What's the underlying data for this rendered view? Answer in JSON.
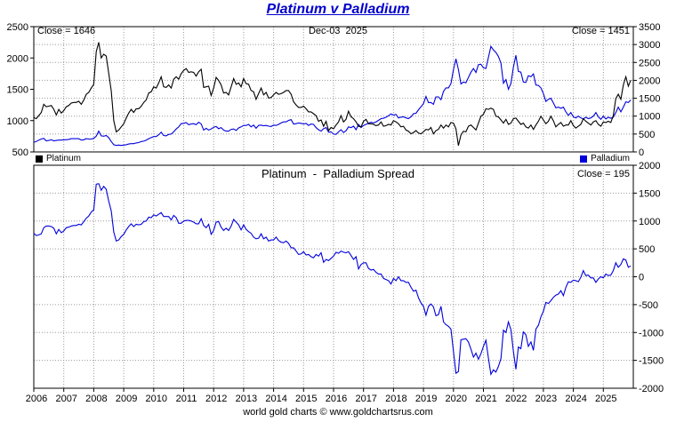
{
  "title": "Platinum v Palladium",
  "top_panel": {
    "close_left": "Close = 1646",
    "date": "Dec-03  2025",
    "close_right": "Close = 1451",
    "legend": [
      {
        "label": "Platinum",
        "color": "#000000"
      },
      {
        "label": "Palladium",
        "color": "#0000dd"
      }
    ]
  },
  "bottom_panel": {
    "title": "Platinum  -  Palladium Spread",
    "close": "Close = 195"
  },
  "footer": "world gold charts © www.goldchartsrus.com",
  "colors": {
    "title": "#0000cc",
    "platinum": "#000000",
    "palladium": "#0000dd",
    "spread": "#0000dd",
    "grid": "#999999",
    "axis": "#000000",
    "background": "#ffffff"
  },
  "chart_data": [
    {
      "type": "line",
      "title": "Platinum v Palladium",
      "x_unit": "year",
      "x_start": 2006,
      "x_step": 0.0833333,
      "xlim": [
        2006,
        2026
      ],
      "x_ticks": [
        2006,
        2007,
        2008,
        2009,
        2010,
        2011,
        2012,
        2013,
        2014,
        2015,
        2016,
        2017,
        2018,
        2019,
        2020,
        2021,
        2022,
        2023,
        2024,
        2025
      ],
      "grid": true,
      "legend_position": "between-panels",
      "axes": {
        "left": {
          "series": "Platinum",
          "range": [
            500,
            2500
          ],
          "ticks": [
            500,
            1000,
            1500,
            2000,
            2500
          ]
        },
        "right": {
          "series": "Palladium",
          "range": [
            0,
            3500
          ],
          "ticks": [
            0,
            500,
            1000,
            1500,
            2000,
            2500,
            3000,
            3500
          ]
        }
      },
      "series": [
        {
          "name": "Platinum",
          "axis": "left",
          "color": "#000000",
          "close": 1646,
          "values": [
            1050,
            1030,
            1080,
            1130,
            1260,
            1220,
            1230,
            1240,
            1180,
            1090,
            1180,
            1120,
            1160,
            1220,
            1240,
            1280,
            1290,
            1290,
            1310,
            1260,
            1330,
            1420,
            1450,
            1520,
            1580,
            2100,
            2250,
            2000,
            2060,
            2030,
            1760,
            1470,
            1000,
            820,
            850,
            900,
            950,
            1040,
            1120,
            1180,
            1130,
            1190,
            1190,
            1230,
            1290,
            1330,
            1440,
            1460,
            1540,
            1520,
            1600,
            1700,
            1540,
            1530,
            1570,
            1520,
            1660,
            1700,
            1660,
            1750,
            1800,
            1830,
            1770,
            1780,
            1770,
            1710,
            1780,
            1820,
            1530,
            1540,
            1550,
            1400,
            1520,
            1690,
            1640,
            1570,
            1440,
            1450,
            1410,
            1540,
            1670,
            1580,
            1600,
            1540,
            1670,
            1590,
            1580,
            1480,
            1460,
            1340,
            1430,
            1520,
            1410,
            1450,
            1360,
            1370,
            1410,
            1450,
            1420,
            1430,
            1450,
            1480,
            1480,
            1420,
            1300,
            1250,
            1210,
            1210,
            1230,
            1190,
            1140,
            1140,
            1110,
            1080,
            990,
            1010,
            910,
            990,
            840,
            890,
            870,
            930,
            980,
            1080,
            980,
            1020,
            1150,
            1060,
            1030,
            980,
            910,
            900,
            990,
            1020,
            950,
            950,
            940,
            920,
            930,
            980,
            910,
            920,
            940,
            930,
            1000,
            980,
            950,
            900,
            910,
            850,
            830,
            790,
            810,
            840,
            800,
            790,
            820,
            860,
            850,
            890,
            790,
            840,
            860,
            930,
            880,
            930,
            900,
            970,
            960,
            870,
            600,
            770,
            830,
            820,
            910,
            930,
            890,
            850,
            960,
            1070,
            1100,
            1190,
            1180,
            1200,
            1180,
            1070,
            1060,
            1010,
            960,
            1020,
            940,
            960,
            1030,
            1040,
            990,
            940,
            960,
            900,
            880,
            930,
            860,
            930,
            990,
            1070,
            1010,
            950,
            990,
            1070,
            1000,
            900,
            940,
            970,
            910,
            930,
            930,
            1000,
            920,
            880,
            910,
            940,
            1030,
            990,
            960,
            930,
            980,
            1000,
            940,
            910,
            980,
            970,
            990,
            970,
            1080,
            1350,
            1420,
            1340,
            1570,
            1700,
            1550,
            1646
          ]
        },
        {
          "name": "Palladium",
          "axis": "right",
          "color": "#0000dd",
          "close": 1451,
          "values": [
            270,
            290,
            330,
            360,
            380,
            310,
            320,
            340,
            310,
            320,
            330,
            330,
            340,
            340,
            350,
            370,
            370,
            370,
            370,
            330,
            340,
            370,
            360,
            360,
            380,
            440,
            580,
            450,
            440,
            460,
            400,
            290,
            200,
            180,
            190,
            180,
            190,
            200,
            220,
            230,
            230,
            250,
            260,
            290,
            300,
            330,
            370,
            400,
            430,
            430,
            480,
            550,
            460,
            450,
            490,
            500,
            560,
            640,
            700,
            790,
            800,
            820,
            760,
            780,
            790,
            760,
            830,
            780,
            610,
            660,
            610,
            640,
            690,
            710,
            650,
            680,
            610,
            580,
            580,
            630,
            640,
            600,
            670,
            700,
            740,
            740,
            770,
            700,
            750,
            660,
            740,
            750,
            730,
            740,
            720,
            710,
            750,
            740,
            770,
            810,
            840,
            840,
            880,
            900,
            780,
            790,
            810,
            800,
            780,
            800,
            740,
            780,
            770,
            680,
            620,
            580,
            650,
            680,
            550,
            560,
            500,
            490,
            560,
            620,
            540,
            590,
            700,
            680,
            720,
            620,
            770,
            680,
            740,
            770,
            800,
            830,
            810,
            840,
            880,
            930,
            940,
            970,
            1010,
            1060,
            1030,
            1050,
            950,
            970,
            980,
            950,
            930,
            980,
            1070,
            1080,
            1180,
            1260,
            1350,
            1550,
            1380,
            1380,
            1330,
            1540,
            1540,
            1460,
            1690,
            1790,
            1790,
            1910,
            2300,
            2600,
            2300,
            1900,
            1950,
            1930,
            2080,
            2230,
            2330,
            2220,
            2440,
            2450,
            2350,
            2330,
            2640,
            2950,
            2850,
            2780,
            2670,
            2480,
            1920,
            2020,
            1750,
            1910,
            2370,
            2700,
            2250,
            2230,
            1950,
            1940,
            2130,
            2100,
            2180,
            1870,
            1860,
            1790,
            1630,
            1410,
            1470,
            1500,
            1370,
            1230,
            1250,
            1220,
            1250,
            1120,
            1020,
            1100,
            980,
            950,
            1000,
            950,
            920,
            970,
            930,
            950,
            1000,
            1100,
            980,
            910,
            1000,
            920,
            970,
            940,
            970,
            1100,
            1250,
            1120,
            1250,
            1400,
            1380,
            1451
          ]
        }
      ]
    },
    {
      "type": "line",
      "title": "Platinum - Palladium Spread",
      "x_unit": "year",
      "xlim": [
        2006,
        2026
      ],
      "grid": true,
      "axes": {
        "right": {
          "series": "Spread",
          "range": [
            -2000,
            2000
          ],
          "ticks": [
            -2000,
            -1500,
            -1000,
            -500,
            0,
            500,
            1000,
            1500,
            2000
          ]
        }
      },
      "series": [
        {
          "name": "Spread",
          "axis": "right",
          "color": "#0000dd",
          "close": 195,
          "derived": "Platinum values minus Palladium values (computed from chart_data[0])"
        }
      ]
    }
  ]
}
